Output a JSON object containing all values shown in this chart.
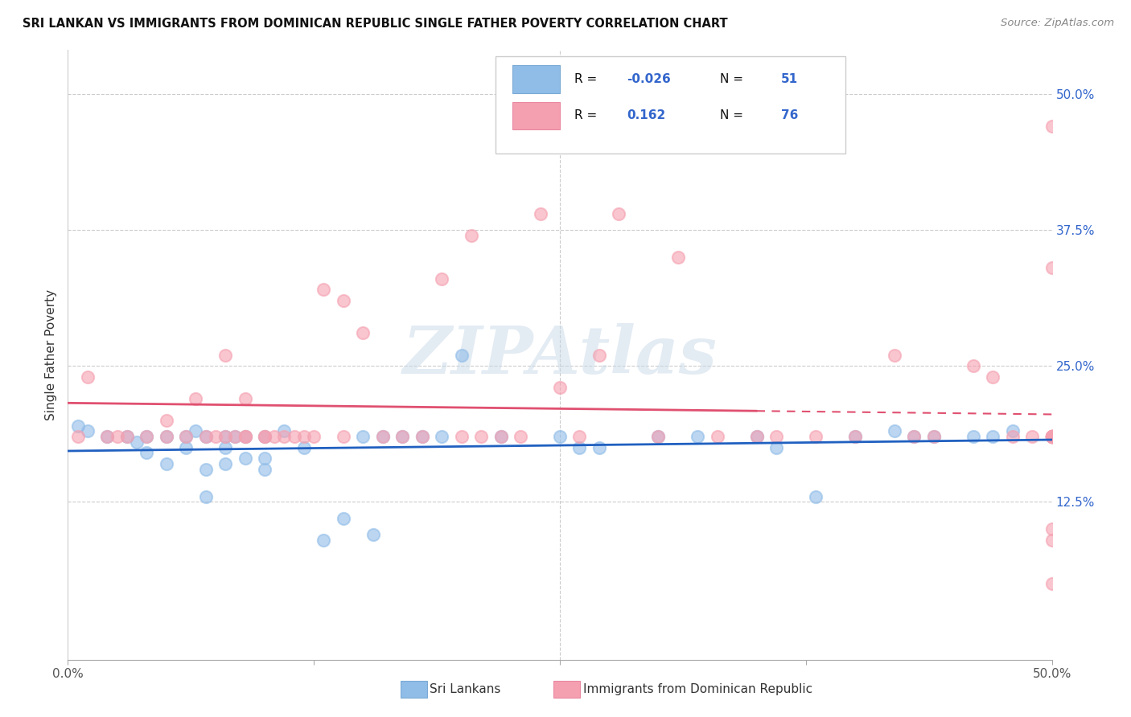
{
  "title": "SRI LANKAN VS IMMIGRANTS FROM DOMINICAN REPUBLIC SINGLE FATHER POVERTY CORRELATION CHART",
  "source": "Source: ZipAtlas.com",
  "ylabel": "Single Father Poverty",
  "yticks_labels": [
    "12.5%",
    "25.0%",
    "37.5%",
    "50.0%"
  ],
  "ytick_vals": [
    0.125,
    0.25,
    0.375,
    0.5
  ],
  "xlim": [
    0.0,
    0.5
  ],
  "ylim": [
    -0.02,
    0.54
  ],
  "sri_lanka_color": "#90bce8",
  "dr_color": "#f5a0b0",
  "blue_line_color": "#2060c0",
  "pink_line_color": "#e05070",
  "watermark_text": "ZIPAtlas",
  "legend_r1": "-0.026",
  "legend_n1": "51",
  "legend_r2": "0.162",
  "legend_n2": "76",
  "bottom_label1": "Sri Lankans",
  "bottom_label2": "Immigrants from Dominican Republic",
  "sl_x": [
    0.005,
    0.01,
    0.02,
    0.03,
    0.035,
    0.04,
    0.04,
    0.05,
    0.05,
    0.06,
    0.06,
    0.065,
    0.07,
    0.07,
    0.07,
    0.08,
    0.08,
    0.08,
    0.085,
    0.09,
    0.09,
    0.1,
    0.1,
    0.1,
    0.11,
    0.12,
    0.13,
    0.14,
    0.15,
    0.155,
    0.16,
    0.17,
    0.18,
    0.19,
    0.2,
    0.22,
    0.25,
    0.26,
    0.27,
    0.3,
    0.32,
    0.35,
    0.36,
    0.38,
    0.4,
    0.42,
    0.43,
    0.44,
    0.46,
    0.47,
    0.48
  ],
  "sl_y": [
    0.195,
    0.19,
    0.185,
    0.185,
    0.18,
    0.185,
    0.17,
    0.185,
    0.16,
    0.185,
    0.175,
    0.19,
    0.185,
    0.155,
    0.13,
    0.185,
    0.175,
    0.16,
    0.185,
    0.185,
    0.165,
    0.185,
    0.165,
    0.155,
    0.19,
    0.175,
    0.09,
    0.11,
    0.185,
    0.095,
    0.185,
    0.185,
    0.185,
    0.185,
    0.26,
    0.185,
    0.185,
    0.175,
    0.175,
    0.185,
    0.185,
    0.185,
    0.175,
    0.13,
    0.185,
    0.19,
    0.185,
    0.185,
    0.185,
    0.185,
    0.19
  ],
  "dr_x": [
    0.005,
    0.01,
    0.02,
    0.025,
    0.03,
    0.04,
    0.05,
    0.05,
    0.06,
    0.065,
    0.07,
    0.075,
    0.08,
    0.08,
    0.085,
    0.09,
    0.09,
    0.09,
    0.1,
    0.1,
    0.105,
    0.11,
    0.115,
    0.12,
    0.125,
    0.13,
    0.14,
    0.14,
    0.15,
    0.16,
    0.17,
    0.18,
    0.19,
    0.2,
    0.205,
    0.21,
    0.22,
    0.23,
    0.24,
    0.25,
    0.26,
    0.27,
    0.28,
    0.3,
    0.31,
    0.33,
    0.35,
    0.36,
    0.38,
    0.4,
    0.42,
    0.43,
    0.44,
    0.46,
    0.47,
    0.48,
    0.49,
    0.5,
    0.5,
    0.5,
    0.5,
    0.5,
    0.5,
    0.5,
    0.5,
    0.5,
    0.5,
    0.5,
    0.5,
    0.5,
    0.5,
    0.5,
    0.5,
    0.5,
    0.5,
    0.5
  ],
  "dr_y": [
    0.185,
    0.24,
    0.185,
    0.185,
    0.185,
    0.185,
    0.2,
    0.185,
    0.185,
    0.22,
    0.185,
    0.185,
    0.185,
    0.26,
    0.185,
    0.185,
    0.22,
    0.185,
    0.185,
    0.185,
    0.185,
    0.185,
    0.185,
    0.185,
    0.185,
    0.32,
    0.31,
    0.185,
    0.28,
    0.185,
    0.185,
    0.185,
    0.33,
    0.185,
    0.37,
    0.185,
    0.185,
    0.185,
    0.39,
    0.23,
    0.185,
    0.26,
    0.39,
    0.185,
    0.35,
    0.185,
    0.185,
    0.185,
    0.185,
    0.185,
    0.26,
    0.185,
    0.185,
    0.25,
    0.24,
    0.185,
    0.185,
    0.34,
    0.185,
    0.1,
    0.185,
    0.185,
    0.05,
    0.185,
    0.09,
    0.185,
    0.185,
    0.185,
    0.185,
    0.185,
    0.185,
    0.185,
    0.185,
    0.185,
    0.185,
    0.47
  ]
}
